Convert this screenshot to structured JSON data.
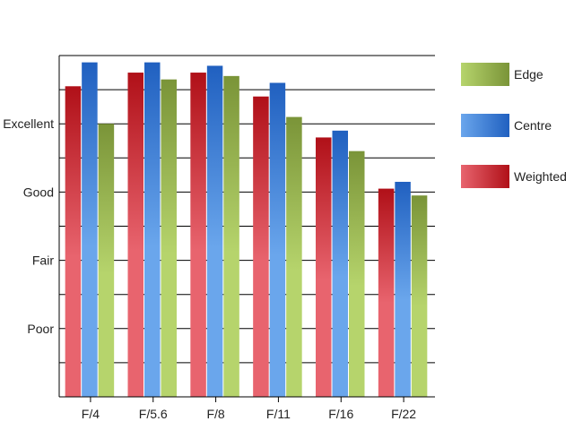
{
  "chart_data": {
    "type": "bar",
    "title": "",
    "xlabel": "",
    "ylabel": "",
    "categories": [
      "F/4",
      "F/5.6",
      "F/8",
      "F/11",
      "F/16",
      "F/22"
    ],
    "y_tick_labels": [
      {
        "value": 2,
        "label": "Poor"
      },
      {
        "value": 4,
        "label": "Fair"
      },
      {
        "value": 6,
        "label": "Good"
      },
      {
        "value": 8,
        "label": "Excellent"
      }
    ],
    "ylim": [
      0,
      10
    ],
    "grid": true,
    "legend_position": "right",
    "series": [
      {
        "name": "Weighted",
        "values": [
          9.1,
          9.5,
          9.5,
          8.8,
          7.6,
          6.1
        ],
        "color_light": "#e8646e",
        "color_dark": "#b01018"
      },
      {
        "name": "Centre",
        "values": [
          9.8,
          9.8,
          9.7,
          9.2,
          7.8,
          6.3
        ],
        "color_light": "#6aa6ec",
        "color_dark": "#2060c0"
      },
      {
        "name": "Edge",
        "values": [
          8.0,
          9.3,
          9.4,
          8.2,
          7.2,
          5.9
        ],
        "color_light": "#b6d46c",
        "color_dark": "#7a9438"
      }
    ],
    "legend_order": [
      "Edge",
      "Centre",
      "Weighted"
    ]
  }
}
